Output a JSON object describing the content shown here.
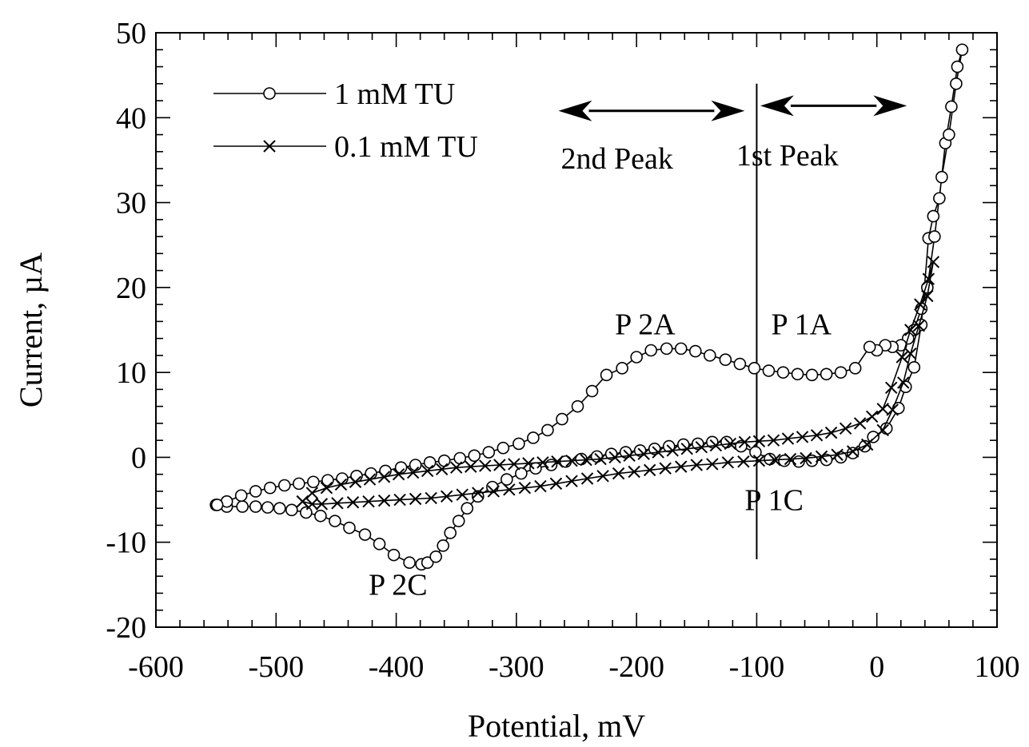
{
  "chart_data": {
    "type": "line",
    "xlabel": "Potential, mV",
    "ylabel": "Current, µA",
    "xlim": [
      -600,
      100
    ],
    "ylim": [
      -20,
      50
    ],
    "x_ticks": [
      "-600",
      "-500",
      "-400",
      "-300",
      "-200",
      "-100",
      "0",
      "100"
    ],
    "y_ticks": [
      "-20",
      "-10",
      "0",
      "10",
      "20",
      "30",
      "40",
      "50"
    ],
    "x_tick_values": [
      -600,
      -500,
      -400,
      -300,
      -200,
      -100,
      0,
      100
    ],
    "y_tick_values": [
      -20,
      -10,
      0,
      10,
      20,
      30,
      40,
      50
    ],
    "x_minor_step": 20,
    "y_minor_step": 2,
    "legend_position": "top-left",
    "legend": [
      "1 mM TU",
      "0.1 mM TU"
    ],
    "series": [
      {
        "name": "1 mM TU",
        "marker": "circle",
        "x": [
          -550,
          -541,
          -528,
          -517,
          -507,
          -497,
          -487,
          -475,
          -463,
          -451,
          -439,
          -426,
          -414,
          -402,
          -389,
          -379,
          -374,
          -367,
          -361,
          -355,
          -348,
          -341,
          -332,
          -320,
          -308,
          -296,
          -284,
          -271,
          -259,
          -246,
          -233,
          -221,
          -209,
          -197,
          -185,
          -173,
          -161,
          -149,
          -137,
          -125,
          -113,
          -101,
          -89,
          -77,
          -65,
          -54,
          -42,
          -30,
          -20,
          -10,
          -3,
          8,
          18,
          24,
          31,
          37,
          43,
          47,
          52,
          57,
          62,
          67,
          71,
          66,
          60,
          54,
          48,
          42,
          37,
          31,
          26,
          20,
          13,
          7,
          0,
          -6,
          -18,
          -30,
          -42,
          -54,
          -66,
          -78,
          -90,
          -102,
          -114,
          -126,
          -139,
          -151,
          -163,
          -175,
          -188,
          -200,
          -212,
          -225,
          -237,
          -249,
          -262,
          -274,
          -286,
          -298,
          -311,
          -323,
          -335,
          -347,
          -360,
          -372,
          -384,
          -396,
          -409,
          -421,
          -433,
          -445,
          -457,
          -469,
          -481,
          -493,
          -505,
          -517,
          -529,
          -541,
          -549
        ],
        "y": [
          -5.6,
          -5.8,
          -5.8,
          -5.8,
          -5.9,
          -6.0,
          -6.2,
          -6.5,
          -6.9,
          -7.5,
          -8.3,
          -9.1,
          -10.2,
          -11.5,
          -12.4,
          -12.6,
          -12.4,
          -11.7,
          -10.4,
          -8.9,
          -7.5,
          -6.0,
          -4.6,
          -3.5,
          -2.6,
          -1.9,
          -1.3,
          -0.9,
          -0.5,
          -0.2,
          0.1,
          0.4,
          0.6,
          0.8,
          1.0,
          1.3,
          1.5,
          1.6,
          1.8,
          1.8,
          1.3,
          0.6,
          -0.2,
          -0.4,
          -0.5,
          -0.4,
          -0.3,
          0.0,
          0.5,
          1.3,
          2.4,
          3.4,
          5.8,
          8.3,
          10.6,
          15.6,
          25.8,
          28.4,
          30.5,
          37.0,
          41.3,
          46.0,
          48.0,
          44.0,
          38.0,
          33.0,
          26.0,
          20.0,
          17.5,
          15.0,
          14.0,
          13.2,
          13.0,
          13.2,
          12.6,
          13.0,
          10.5,
          10.0,
          9.8,
          9.7,
          9.8,
          10.0,
          10.2,
          10.5,
          11.0,
          11.5,
          12.0,
          12.5,
          12.8,
          12.8,
          12.6,
          11.8,
          10.5,
          9.7,
          7.8,
          6.0,
          4.5,
          3.2,
          2.3,
          1.6,
          1.1,
          0.6,
          0.2,
          -0.1,
          -0.4,
          -0.6,
          -0.9,
          -1.2,
          -1.6,
          -1.9,
          -2.2,
          -2.5,
          -2.7,
          -2.9,
          -3.1,
          -3.3,
          -3.6,
          -4.0,
          -4.5,
          -5.2,
          -5.6
        ]
      },
      {
        "name": "0.1 mM TU",
        "marker": "cross",
        "x": [
          -478,
          -470,
          -462,
          -449,
          -436,
          -423,
          -410,
          -397,
          -384,
          -371,
          -358,
          -345,
          -332,
          -319,
          -306,
          -293,
          -280,
          -267,
          -254,
          -241,
          -228,
          -215,
          -202,
          -189,
          -176,
          -163,
          -150,
          -137,
          -124,
          -111,
          -98,
          -85,
          -72,
          -59,
          -46,
          -33,
          -20,
          -8,
          5,
          13,
          22,
          28,
          35,
          42,
          47,
          43,
          36,
          28,
          21,
          12,
          5,
          -4,
          -14,
          -26,
          -38,
          -50,
          -62,
          -74,
          -86,
          -98,
          -110,
          -122,
          -134,
          -146,
          -158,
          -170,
          -182,
          -194,
          -206,
          -218,
          -230,
          -242,
          -254,
          -266,
          -278,
          -290,
          -302,
          -314,
          -326,
          -338,
          -350,
          -362,
          -374,
          -386,
          -398,
          -410,
          -422,
          -434,
          -446,
          -458,
          -470,
          -478
        ],
        "y": [
          -5.2,
          -5.5,
          -5.5,
          -5.4,
          -5.3,
          -5.2,
          -5.1,
          -5.0,
          -4.9,
          -4.8,
          -4.6,
          -4.4,
          -4.2,
          -4.0,
          -3.8,
          -3.6,
          -3.4,
          -3.1,
          -2.8,
          -2.5,
          -2.2,
          -1.9,
          -1.7,
          -1.5,
          -1.3,
          -1.1,
          -0.9,
          -0.8,
          -0.6,
          -0.5,
          -0.4,
          -0.3,
          -0.2,
          -0.1,
          0.1,
          0.3,
          0.7,
          1.5,
          3.2,
          5.6,
          8.8,
          12.2,
          15.5,
          19.0,
          23.0,
          21.0,
          18.0,
          15.0,
          11.8,
          8.2,
          5.7,
          4.8,
          4.0,
          3.4,
          2.9,
          2.6,
          2.4,
          2.2,
          2.0,
          1.9,
          1.8,
          1.6,
          1.4,
          1.2,
          1.0,
          0.8,
          0.6,
          0.4,
          0.2,
          0.0,
          -0.2,
          -0.3,
          -0.4,
          -0.5,
          -0.6,
          -0.7,
          -0.8,
          -0.9,
          -1.0,
          -1.1,
          -1.2,
          -1.4,
          -1.6,
          -1.8,
          -2.0,
          -2.3,
          -2.6,
          -2.9,
          -3.2,
          -3.6,
          -4.2,
          -5.2
        ]
      }
    ],
    "vertical_line_x": -100,
    "vertical_line_y": [
      -12,
      44
    ],
    "annotations": [
      {
        "text": "P 2A",
        "x": -218,
        "y": 14.5
      },
      {
        "text": "P 1A",
        "x": -88,
        "y": 14.5
      },
      {
        "text": "P 1C",
        "x": -110,
        "y": -6.2
      },
      {
        "text": "P 2C",
        "x": -423,
        "y": -16.2
      },
      {
        "text": "2nd Peak",
        "x": -263,
        "y": 34.0
      },
      {
        "text": "1st Peak",
        "x": -117,
        "y": 34.4
      }
    ],
    "arrows": [
      {
        "from": -265,
        "to": -110,
        "y": 40.8
      },
      {
        "from": -97,
        "to": 25,
        "y": 41.4
      }
    ]
  }
}
